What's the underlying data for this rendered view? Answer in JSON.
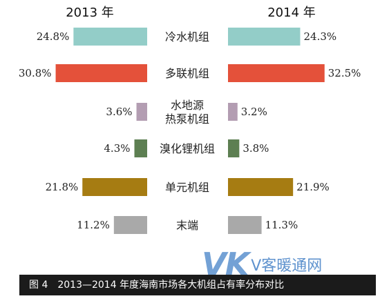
{
  "chart_data": {
    "type": "bar",
    "title": "图 4　2013—2014 年度海南市场各大机组占有率分布对比",
    "categories": [
      "冷水机组",
      "多联机组",
      "水地源热泵机组",
      "溴化锂机组",
      "单元机组",
      "末端"
    ],
    "category_lines": [
      [
        "冷水机组"
      ],
      [
        "多联机组"
      ],
      [
        "水地源",
        "热泵机组"
      ],
      [
        "溴化锂机组"
      ],
      [
        "单元机组"
      ],
      [
        "末端"
      ]
    ],
    "series": [
      {
        "name": "2013 年",
        "values": [
          24.8,
          30.8,
          3.6,
          4.3,
          21.8,
          11.2
        ],
        "labels": [
          "24.8%",
          "30.8%",
          "3.6%",
          "4.3%",
          "21.8%",
          "11.2%"
        ]
      },
      {
        "name": "2014 年",
        "values": [
          24.3,
          32.5,
          3.2,
          3.8,
          21.9,
          11.3
        ],
        "labels": [
          "24.3%",
          "32.5%",
          "3.2%",
          "3.8%",
          "21.9%",
          "11.3%"
        ]
      }
    ],
    "colors": [
      "#93cdc8",
      "#e4513a",
      "#b39db2",
      "#5d7f52",
      "#a67c12",
      "#a9a9a9"
    ],
    "unit": "%",
    "layout": "butterfly",
    "grid": false
  },
  "caption": "图 4　2013—2014 年度海南市场各大机组占有率分布对比",
  "watermark": {
    "logo": "VK",
    "text": "V客暖通网"
  }
}
